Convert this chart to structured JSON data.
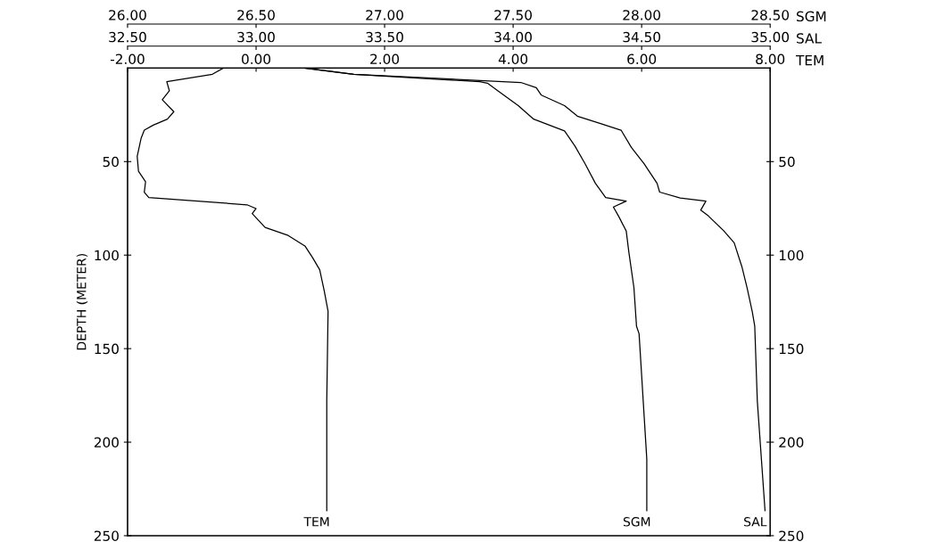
{
  "chart_data": [
    {
      "type": "line",
      "ylabel": "DEPTH (METER)",
      "xlabel": "SGM",
      "ylim": [
        250,
        0
      ],
      "yticks": [
        50,
        100,
        150,
        200,
        250
      ],
      "y2lim": [
        250,
        0
      ],
      "y2ticks": [
        50,
        100,
        150,
        200,
        250
      ],
      "xlim": [
        26,
        28.5
      ],
      "xticks": [
        {
          "value": 26,
          "label": "26.00"
        },
        {
          "value": 26.5,
          "label": "26.50"
        },
        {
          "value": 27,
          "label": "27.00"
        },
        {
          "value": 27.5,
          "label": "27.50"
        },
        {
          "value": 28,
          "label": "28.00"
        },
        {
          "value": 28.5,
          "label": "28.50"
        }
      ],
      "series": [
        {
          "name": "SGM",
          "color": "#000000",
          "x": [
            26.69,
            26.88,
            27.37,
            27.4,
            27.44,
            27.52,
            27.58,
            27.7,
            27.74,
            27.78,
            27.82,
            27.86,
            27.94,
            27.89,
            27.91,
            27.94,
            27.95,
            27.97,
            27.98,
            27.99,
            28.02,
            28.02
          ],
          "values": [
            0,
            3.3,
            7.3,
            8.1,
            12.1,
            20.1,
            27.3,
            33.6,
            41.6,
            51.2,
            61.6,
            69.2,
            71.1,
            74.3,
            79.1,
            87.1,
            98.2,
            117.4,
            138,
            142,
            209,
            236.6
          ]
        }
      ]
    },
    {
      "type": "line",
      "xlabel": "SAL",
      "tick_labels": "x",
      "ylim": [
        250,
        0
      ],
      "xlim": [
        32.5,
        35
      ],
      "xticks": [
        {
          "value": 32.5,
          "label": "32.50"
        },
        {
          "value": 33,
          "label": "33.00"
        },
        {
          "value": 33.5,
          "label": "33.50"
        },
        {
          "value": 34,
          "label": "34.00"
        },
        {
          "value": 34.5,
          "label": "34.50"
        },
        {
          "value": 35,
          "label": "35.00"
        }
      ],
      "series": [
        {
          "name": "SAL",
          "color": "#000000",
          "x": [
            33.19,
            33.38,
            34.03,
            34.09,
            34.11,
            34.2,
            34.25,
            34.34,
            34.42,
            34.46,
            34.51,
            34.56,
            34.57,
            34.65,
            34.75,
            34.73,
            34.76,
            34.82,
            34.86,
            34.89,
            34.91,
            34.93,
            34.94,
            34.95,
            34.98
          ],
          "values": [
            0,
            3.3,
            7.7,
            10.5,
            14.5,
            20.1,
            25.7,
            29.7,
            33.2,
            42.4,
            51.2,
            61.6,
            66.3,
            69.5,
            71.1,
            75.9,
            79.1,
            87.1,
            93.4,
            106.2,
            117.4,
            130,
            138,
            178,
            236.6
          ]
        }
      ]
    },
    {
      "type": "line",
      "xlabel": "TEM",
      "tick_labels": "x",
      "ylim": [
        250,
        0
      ],
      "xlim": [
        -2,
        8
      ],
      "xticks": [
        {
          "value": -2,
          "label": "-2.00"
        },
        {
          "value": 0,
          "label": "0.00"
        },
        {
          "value": 2,
          "label": "2.00"
        },
        {
          "value": 4,
          "label": "4.00"
        },
        {
          "value": 6,
          "label": "6.00"
        },
        {
          "value": 8,
          "label": "8.00"
        }
      ],
      "series": [
        {
          "name": "TEM",
          "color": "#000000",
          "x": [
            -0.51,
            -0.68,
            -1.39,
            -1.35,
            -1.46,
            -1.28,
            -1.38,
            -1.6,
            -1.74,
            -1.79,
            -1.85,
            -1.83,
            -1.72,
            -1.74,
            -1.67,
            -0.14,
            0.0,
            -0.06,
            0.14,
            0.5,
            0.76,
            0.88,
            0.99,
            1.06,
            1.12,
            1.1,
            1.1
          ],
          "values": [
            0,
            3.3,
            7.3,
            12.1,
            16.9,
            23.3,
            27.3,
            30.5,
            33.2,
            37.6,
            47.2,
            55.2,
            60.8,
            66.4,
            69.2,
            73.1,
            75.1,
            77.8,
            85.2,
            89.5,
            95.1,
            101.4,
            107.8,
            119,
            130,
            178,
            236.6
          ]
        }
      ]
    }
  ]
}
